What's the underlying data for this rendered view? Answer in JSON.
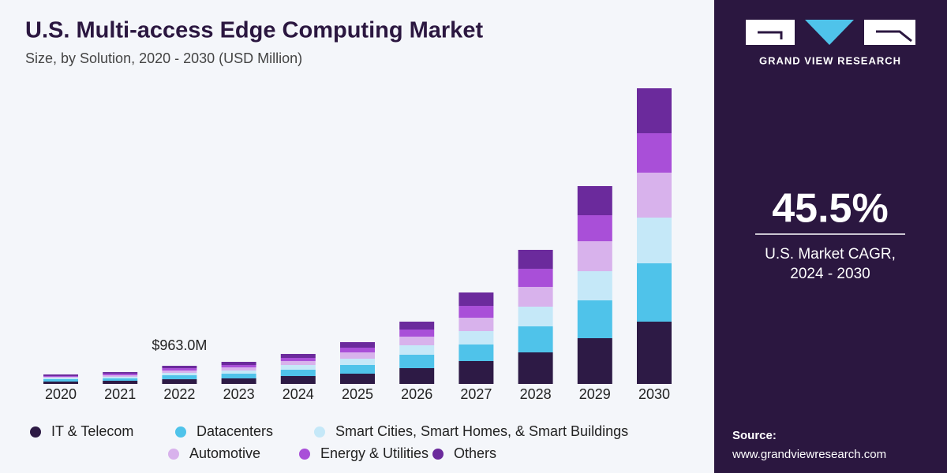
{
  "chart_data": {
    "type": "stacked-bar",
    "title": "U.S. Multi-access Edge Computing Market",
    "subtitle": "Size, by Solution, 2020 - 2030 (USD Million)",
    "categories": [
      "2020",
      "2021",
      "2022",
      "2023",
      "2024",
      "2025",
      "2026",
      "2027",
      "2028",
      "2029",
      "2030"
    ],
    "series": [
      {
        "name": "IT & Telecom",
        "color": "#2d1a45",
        "values": [
          126,
          168,
          250,
          293,
          419,
          545,
          838,
          1215,
          1676,
          2430,
          3310
        ]
      },
      {
        "name": "Datacenters",
        "color": "#4fc3ea",
        "values": [
          126,
          126,
          210,
          251,
          335,
          461,
          712,
          880,
          1383,
          2011,
          3100
        ]
      },
      {
        "name": "Smart Cities, Smart Homes, & Smart Buildings",
        "color": "#c5e8f8",
        "values": [
          84,
          84,
          126,
          168,
          251,
          335,
          503,
          712,
          1048,
          1550,
          2430
        ]
      },
      {
        "name": "Automotive",
        "color": "#d8b2ec",
        "values": [
          42,
          84,
          125,
          168,
          210,
          335,
          461,
          712,
          1048,
          1592,
          2390
        ]
      },
      {
        "name": "Energy & Utilities",
        "color": "#a94fd8",
        "values": [
          42,
          84,
          126,
          126,
          168,
          251,
          377,
          629,
          964,
          1383,
          2095
        ]
      },
      {
        "name": "Others",
        "color": "#6b2a9c",
        "values": [
          84,
          84,
          126,
          168,
          210,
          293,
          419,
          712,
          1006,
          1550,
          2388
        ]
      }
    ],
    "annotation": {
      "category": "2022",
      "label": "$963.0M"
    }
  },
  "sidebar": {
    "brand": "GRAND VIEW RESEARCH",
    "cagr": "45.5%",
    "cagr_label_1": "U.S. Market CAGR,",
    "cagr_label_2": "2024 - 2030",
    "source_label": "Source:",
    "source_url": "www.grandviewresearch.com"
  }
}
